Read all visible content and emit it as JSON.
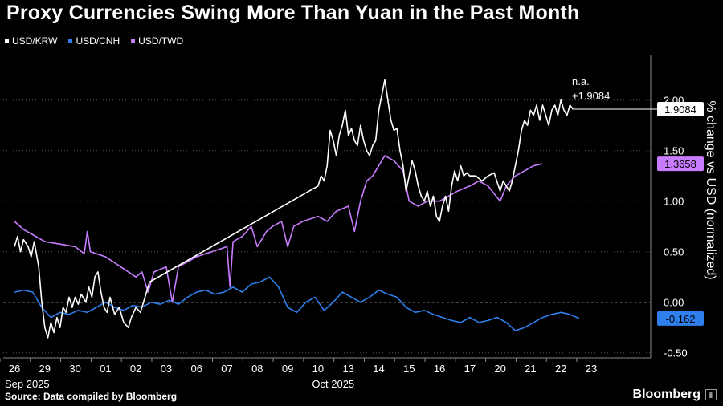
{
  "title": "Proxy Currencies Swing More Than Yuan in the Past Month",
  "source": "Source: Data compiled by Bloomberg",
  "brand": "Bloomberg",
  "chart_data": {
    "type": "line",
    "ylabel": "% change vs USD (normalized)",
    "ylim": [
      -0.55,
      2.45
    ],
    "yticks": [
      -0.5,
      0,
      0.5,
      1.0,
      1.5,
      2.0
    ],
    "ytick_labels": [
      "-0.50",
      "0.00",
      "0.50",
      "1.00",
      "1.50",
      "2.00"
    ],
    "xlim": [
      0,
      27
    ],
    "xtick_positions": [
      0,
      1,
      2,
      3,
      4,
      5,
      6,
      7,
      8,
      9,
      10,
      11,
      12,
      13,
      14,
      15,
      16,
      17,
      18,
      19,
      20,
      21,
      22,
      23
    ],
    "xtick_labels": [
      "26",
      "29",
      "30",
      "01",
      "02",
      "03",
      "06",
      "07",
      "08",
      "09",
      "10",
      "13",
      "14",
      "15",
      "16",
      "17",
      "20",
      "21",
      "22",
      "23",
      "",
      "",
      "",
      ""
    ],
    "month_labels": [
      {
        "at": 0,
        "text": "Sep 2025"
      },
      {
        "at": 10.5,
        "text": "Oct 2025"
      }
    ],
    "grid": "horizontal-dotted",
    "legend": "top-left",
    "annotations": [
      {
        "text": "n.a.",
        "series": "USD/KRW"
      },
      {
        "text": "+1.9084",
        "series": "USD/KRW"
      }
    ],
    "series": [
      {
        "name": "USD/KRW",
        "color": "#ffffff",
        "last_label": "1.9084",
        "points": [
          [
            0,
            0.55
          ],
          [
            0.1,
            0.65
          ],
          [
            0.2,
            0.5
          ],
          [
            0.3,
            0.62
          ],
          [
            0.45,
            0.55
          ],
          [
            0.55,
            0.45
          ],
          [
            0.65,
            0.6
          ],
          [
            0.8,
            0.35
          ],
          [
            0.9,
            0.0
          ],
          [
            1.0,
            -0.25
          ],
          [
            1.1,
            -0.35
          ],
          [
            1.2,
            -0.2
          ],
          [
            1.3,
            -0.3
          ],
          [
            1.4,
            -0.15
          ],
          [
            1.5,
            -0.25
          ],
          [
            1.6,
            -0.05
          ],
          [
            1.7,
            -0.1
          ],
          [
            1.8,
            0.05
          ],
          [
            1.9,
            -0.05
          ],
          [
            2.0,
            0.05
          ],
          [
            2.1,
            -0.02
          ],
          [
            2.2,
            0.08
          ],
          [
            2.35,
            0.0
          ],
          [
            2.45,
            0.15
          ],
          [
            2.55,
            0.05
          ],
          [
            2.65,
            0.25
          ],
          [
            2.75,
            0.3
          ],
          [
            2.85,
            0.1
          ],
          [
            2.95,
            -0.05
          ],
          [
            3.05,
            -0.1
          ],
          [
            3.15,
            0.05
          ],
          [
            3.3,
            -0.12
          ],
          [
            3.45,
            -0.05
          ],
          [
            3.6,
            -0.2
          ],
          [
            3.75,
            -0.25
          ],
          [
            3.85,
            -0.15
          ],
          [
            4.0,
            -0.05
          ],
          [
            4.15,
            -0.1
          ],
          [
            4.25,
            0.0
          ],
          [
            4.35,
            0.1
          ],
          [
            4.45,
            0.2
          ],
          [
            10.0,
            1.15
          ],
          [
            10.1,
            1.25
          ],
          [
            10.2,
            1.2
          ],
          [
            10.3,
            1.35
          ],
          [
            10.4,
            1.7
          ],
          [
            10.5,
            1.6
          ],
          [
            10.6,
            1.45
          ],
          [
            10.7,
            1.65
          ],
          [
            10.8,
            1.75
          ],
          [
            10.9,
            1.9
          ],
          [
            11.0,
            1.65
          ],
          [
            11.1,
            1.72
          ],
          [
            11.2,
            1.6
          ],
          [
            11.3,
            1.55
          ],
          [
            11.4,
            1.75
          ],
          [
            11.5,
            1.6
          ],
          [
            11.6,
            1.5
          ],
          [
            11.7,
            1.45
          ],
          [
            11.8,
            1.55
          ],
          [
            11.9,
            1.6
          ],
          [
            12.0,
            1.9
          ],
          [
            12.1,
            2.05
          ],
          [
            12.2,
            2.2
          ],
          [
            12.3,
            2.0
          ],
          [
            12.4,
            1.8
          ],
          [
            12.5,
            1.7
          ],
          [
            12.6,
            1.72
          ],
          [
            12.7,
            1.5
          ],
          [
            12.8,
            1.35
          ],
          [
            12.9,
            1.1
          ],
          [
            13.0,
            1.25
          ],
          [
            13.1,
            1.4
          ],
          [
            13.2,
            1.3
          ],
          [
            13.3,
            1.15
          ],
          [
            13.4,
            1.05
          ],
          [
            13.5,
            1.0
          ],
          [
            13.6,
            1.1
          ],
          [
            13.7,
            0.95
          ],
          [
            13.8,
            1.05
          ],
          [
            13.9,
            0.85
          ],
          [
            14.0,
            0.8
          ],
          [
            14.1,
            0.95
          ],
          [
            14.2,
            1.05
          ],
          [
            14.3,
            0.9
          ],
          [
            14.4,
            1.15
          ],
          [
            14.5,
            1.3
          ],
          [
            14.6,
            1.2
          ],
          [
            14.7,
            1.35
          ],
          [
            14.8,
            1.25
          ],
          [
            14.9,
            1.28
          ],
          [
            15.0,
            1.25
          ],
          [
            15.2,
            1.25
          ],
          [
            15.4,
            1.2
          ],
          [
            15.6,
            1.25
          ],
          [
            15.8,
            1.28
          ],
          [
            16.0,
            1.1
          ],
          [
            16.1,
            1.2
          ],
          [
            16.2,
            1.15
          ],
          [
            16.3,
            1.1
          ],
          [
            16.4,
            1.2
          ],
          [
            16.5,
            1.35
          ],
          [
            16.6,
            1.5
          ],
          [
            16.7,
            1.7
          ],
          [
            16.8,
            1.8
          ],
          [
            16.9,
            1.75
          ],
          [
            17.0,
            1.9
          ],
          [
            17.1,
            1.85
          ],
          [
            17.2,
            1.95
          ],
          [
            17.3,
            1.8
          ],
          [
            17.4,
            1.95
          ],
          [
            17.5,
            1.85
          ],
          [
            17.6,
            1.75
          ],
          [
            17.7,
            1.9
          ],
          [
            17.8,
            1.95
          ],
          [
            17.9,
            1.85
          ],
          [
            18.0,
            2.0
          ],
          [
            18.1,
            1.9
          ],
          [
            18.2,
            1.85
          ],
          [
            18.3,
            1.95
          ],
          [
            18.4,
            1.91
          ]
        ]
      },
      {
        "name": "USD/CNH",
        "color": "#2f80ed",
        "last_label": "-0.162",
        "points": [
          [
            0,
            0.1
          ],
          [
            0.3,
            0.12
          ],
          [
            0.6,
            0.1
          ],
          [
            0.9,
            -0.05
          ],
          [
            1.2,
            -0.15
          ],
          [
            1.5,
            -0.1
          ],
          [
            1.8,
            -0.12
          ],
          [
            2.1,
            -0.08
          ],
          [
            2.4,
            -0.1
          ],
          [
            2.7,
            -0.05
          ],
          [
            3.0,
            0.0
          ],
          [
            3.3,
            -0.05
          ],
          [
            3.6,
            -0.08
          ],
          [
            3.9,
            -0.03
          ],
          [
            4.2,
            -0.05
          ],
          [
            4.5,
            0.0
          ],
          [
            4.8,
            -0.02
          ],
          [
            5.1,
            0.02
          ],
          [
            5.4,
            -0.02
          ],
          [
            5.7,
            0.05
          ],
          [
            6.0,
            0.1
          ],
          [
            6.3,
            0.12
          ],
          [
            6.6,
            0.08
          ],
          [
            6.9,
            0.1
          ],
          [
            7.2,
            0.15
          ],
          [
            7.5,
            0.1
          ],
          [
            7.8,
            0.18
          ],
          [
            8.1,
            0.2
          ],
          [
            8.4,
            0.25
          ],
          [
            8.7,
            0.15
          ],
          [
            9.0,
            -0.05
          ],
          [
            9.3,
            -0.1
          ],
          [
            9.6,
            0.0
          ],
          [
            9.9,
            0.05
          ],
          [
            10.2,
            -0.08
          ],
          [
            10.5,
            0.0
          ],
          [
            10.8,
            0.1
          ],
          [
            11.1,
            0.05
          ],
          [
            11.4,
            0.0
          ],
          [
            11.7,
            0.05
          ],
          [
            12.0,
            0.12
          ],
          [
            12.3,
            0.08
          ],
          [
            12.6,
            0.05
          ],
          [
            12.9,
            -0.05
          ],
          [
            13.2,
            -0.1
          ],
          [
            13.5,
            -0.08
          ],
          [
            13.8,
            -0.12
          ],
          [
            14.1,
            -0.15
          ],
          [
            14.4,
            -0.18
          ],
          [
            14.7,
            -0.2
          ],
          [
            15.0,
            -0.15
          ],
          [
            15.3,
            -0.2
          ],
          [
            15.6,
            -0.18
          ],
          [
            15.9,
            -0.15
          ],
          [
            16.2,
            -0.2
          ],
          [
            16.5,
            -0.28
          ],
          [
            16.8,
            -0.25
          ],
          [
            17.1,
            -0.2
          ],
          [
            17.4,
            -0.15
          ],
          [
            17.7,
            -0.12
          ],
          [
            18.0,
            -0.1
          ],
          [
            18.3,
            -0.12
          ],
          [
            18.6,
            -0.16
          ]
        ]
      },
      {
        "name": "USD/TWD",
        "color": "#c87cff",
        "last_label": "1.3658",
        "points": [
          [
            0,
            0.8
          ],
          [
            0.3,
            0.72
          ],
          [
            1.0,
            0.6
          ],
          [
            2.0,
            0.55
          ],
          [
            2.3,
            0.48
          ],
          [
            2.4,
            0.7
          ],
          [
            2.5,
            0.5
          ],
          [
            3.0,
            0.45
          ],
          [
            3.5,
            0.35
          ],
          [
            4.0,
            0.25
          ],
          [
            4.2,
            0.3
          ],
          [
            4.4,
            0.1
          ],
          [
            4.6,
            0.3
          ],
          [
            5.0,
            0.35
          ],
          [
            5.2,
            0.0
          ],
          [
            5.4,
            0.35
          ],
          [
            6.0,
            0.45
          ],
          [
            6.5,
            0.5
          ],
          [
            7.0,
            0.55
          ],
          [
            7.1,
            0.15
          ],
          [
            7.2,
            0.6
          ],
          [
            7.5,
            0.65
          ],
          [
            7.8,
            0.75
          ],
          [
            8.0,
            0.55
          ],
          [
            8.3,
            0.7
          ],
          [
            8.5,
            0.75
          ],
          [
            8.8,
            0.8
          ],
          [
            9.0,
            0.55
          ],
          [
            9.2,
            0.75
          ],
          [
            9.5,
            0.8
          ],
          [
            10.0,
            0.85
          ],
          [
            10.3,
            0.8
          ],
          [
            10.6,
            0.9
          ],
          [
            11.0,
            0.95
          ],
          [
            11.2,
            0.7
          ],
          [
            11.4,
            1.0
          ],
          [
            11.6,
            1.2
          ],
          [
            11.8,
            1.25
          ],
          [
            12.0,
            1.35
          ],
          [
            12.2,
            1.45
          ],
          [
            12.5,
            1.4
          ],
          [
            12.8,
            1.3
          ],
          [
            13.0,
            1.0
          ],
          [
            13.3,
            0.95
          ],
          [
            13.6,
            1.0
          ],
          [
            14.0,
            1.0
          ],
          [
            14.3,
            1.05
          ],
          [
            14.6,
            1.1
          ],
          [
            15.0,
            1.15
          ],
          [
            15.3,
            1.2
          ],
          [
            15.6,
            1.15
          ],
          [
            16.0,
            1.0
          ],
          [
            16.2,
            1.15
          ],
          [
            16.5,
            1.25
          ],
          [
            16.8,
            1.3
          ],
          [
            17.1,
            1.35
          ],
          [
            17.4,
            1.37
          ]
        ]
      }
    ]
  }
}
